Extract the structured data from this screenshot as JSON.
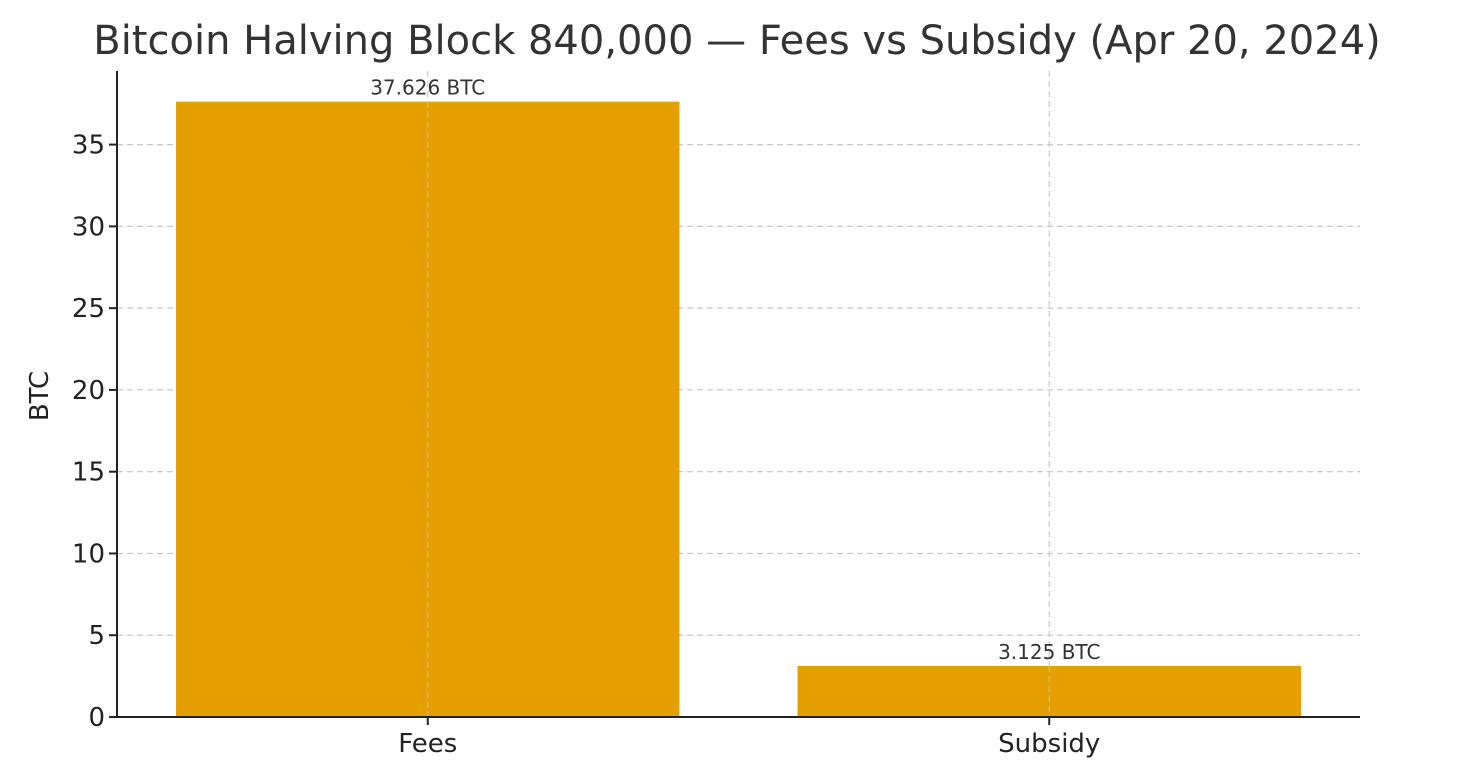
{
  "chart_data": {
    "type": "bar",
    "title": "Bitcoin Halving Block 840,000 — Fees vs Subsidy (Apr 20, 2024)",
    "xlabel": "",
    "ylabel": "BTC",
    "categories": [
      "Fees",
      "Subsidy"
    ],
    "values": [
      37.626,
      3.125
    ],
    "data_labels": [
      "37.626 BTC",
      "3.125 BTC"
    ],
    "ylim": [
      0,
      39.5
    ],
    "yticks": [
      0,
      5,
      10,
      15,
      20,
      25,
      30,
      35
    ],
    "grid": true,
    "legend": "none",
    "colors": {
      "bar": "#E59F00",
      "grid": "#C8C8C8",
      "axis": "#222222",
      "text": "#333333"
    }
  }
}
